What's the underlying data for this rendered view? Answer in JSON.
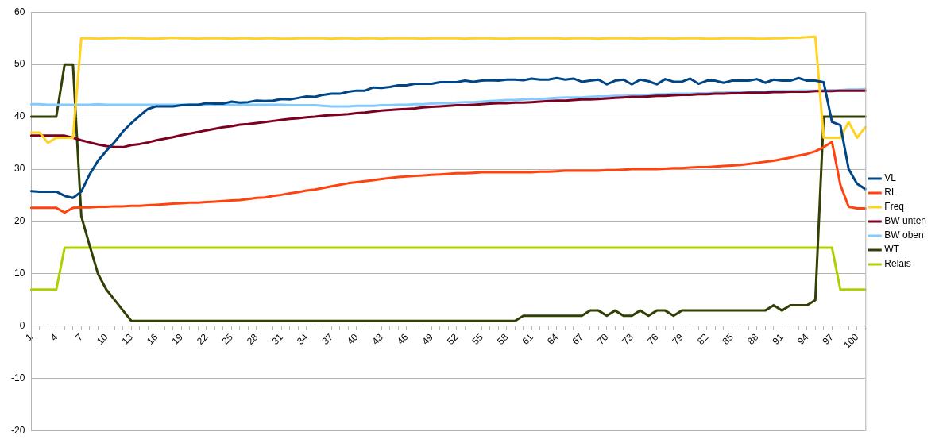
{
  "chart_data": {
    "type": "line",
    "categories": [
      "1",
      null,
      null,
      "4",
      null,
      null,
      "7",
      null,
      null,
      "10",
      null,
      null,
      "13",
      null,
      null,
      "16",
      null,
      null,
      "19",
      null,
      null,
      "22",
      null,
      null,
      "25",
      null,
      null,
      "28",
      null,
      null,
      "31",
      null,
      null,
      "34",
      null,
      null,
      "37",
      null,
      null,
      "40",
      null,
      null,
      "43",
      null,
      null,
      "46",
      null,
      null,
      "49",
      null,
      null,
      "52",
      null,
      null,
      "55",
      null,
      null,
      "58",
      null,
      null,
      "61",
      null,
      null,
      "64",
      null,
      null,
      "67",
      null,
      null,
      "70",
      null,
      null,
      "73",
      null,
      null,
      "76",
      null,
      null,
      "79",
      null,
      null,
      "82",
      null,
      null,
      "85",
      null,
      null,
      "88",
      null,
      null,
      "91",
      null,
      null,
      "94",
      null,
      null,
      "97",
      null,
      null,
      "100",
      null
    ],
    "series": [
      {
        "name": "VL",
        "color": "#004586",
        "values": [
          25.8,
          25.7,
          25.7,
          25.7,
          24.9,
          24.5,
          25.7,
          29.0,
          31.6,
          33.5,
          35.2,
          37.2,
          38.8,
          40.2,
          41.5,
          42.0,
          42.0,
          42.0,
          42.2,
          42.3,
          42.3,
          42.6,
          42.5,
          42.5,
          42.9,
          42.7,
          42.8,
          43.1,
          43.0,
          43.1,
          43.4,
          43.3,
          43.6,
          43.9,
          43.8,
          44.2,
          44.4,
          44.4,
          44.8,
          45.0,
          45.0,
          45.6,
          45.5,
          45.7,
          46.0,
          46.0,
          46.3,
          46.3,
          46.3,
          46.6,
          46.6,
          46.6,
          46.9,
          46.7,
          46.9,
          47.0,
          46.9,
          47.1,
          47.1,
          47.0,
          47.3,
          47.1,
          47.1,
          47.4,
          47.1,
          47.3,
          46.7,
          46.9,
          47.1,
          46.2,
          46.9,
          47.1,
          46.2,
          47.1,
          46.8,
          46.2,
          47.2,
          46.7,
          46.7,
          47.3,
          46.3,
          46.9,
          46.9,
          46.5,
          46.9,
          46.9,
          46.9,
          47.2,
          46.5,
          47.1,
          46.9,
          46.9,
          47.4,
          46.9,
          46.9,
          46.6,
          39.0,
          38.4,
          30.0,
          27.2,
          26.2
        ]
      },
      {
        "name": "RL",
        "color": "#ff420e",
        "values": [
          22.6,
          22.6,
          22.6,
          22.6,
          21.7,
          22.6,
          22.7,
          22.7,
          22.8,
          22.8,
          22.9,
          22.9,
          23.0,
          23.0,
          23.1,
          23.2,
          23.3,
          23.4,
          23.5,
          23.6,
          23.6,
          23.7,
          23.8,
          23.9,
          24.0,
          24.1,
          24.3,
          24.5,
          24.6,
          24.9,
          25.1,
          25.4,
          25.6,
          25.9,
          26.1,
          26.4,
          26.7,
          27.0,
          27.3,
          27.5,
          27.7,
          27.9,
          28.1,
          28.3,
          28.5,
          28.6,
          28.7,
          28.8,
          28.9,
          29.0,
          29.1,
          29.2,
          29.2,
          29.3,
          29.4,
          29.4,
          29.4,
          29.4,
          29.4,
          29.4,
          29.4,
          29.5,
          29.5,
          29.6,
          29.7,
          29.7,
          29.7,
          29.7,
          29.7,
          29.8,
          29.8,
          29.9,
          30.0,
          30.0,
          30.0,
          30.0,
          30.1,
          30.2,
          30.2,
          30.3,
          30.4,
          30.4,
          30.5,
          30.6,
          30.7,
          30.8,
          31.0,
          31.2,
          31.4,
          31.6,
          31.9,
          32.2,
          32.6,
          32.9,
          33.4,
          34.2,
          35.2,
          27.0,
          22.8,
          22.5,
          22.5
        ]
      },
      {
        "name": "Freq",
        "color": "#ffd320",
        "values": [
          37,
          37,
          35,
          36,
          36,
          36,
          55,
          55.0,
          54.9,
          55.0,
          55.0,
          55.1,
          55.0,
          55.0,
          54.9,
          54.9,
          55.0,
          55.1,
          55.0,
          55.0,
          54.9,
          55.0,
          55.0,
          55.0,
          54.9,
          55.0,
          55.0,
          54.9,
          55.0,
          55.0,
          54.9,
          54.9,
          55.0,
          55.0,
          55.0,
          55.0,
          54.9,
          55.0,
          55.0,
          54.9,
          55.0,
          55.0,
          54.9,
          55.0,
          55.0,
          55.0,
          55.0,
          54.9,
          55.0,
          55.0,
          55.0,
          55.0,
          54.9,
          55.0,
          55.0,
          55.0,
          54.9,
          54.9,
          55.0,
          55.0,
          55.0,
          55.0,
          55.0,
          55.0,
          54.9,
          55.0,
          55.0,
          55.0,
          54.9,
          55.0,
          55.0,
          55.0,
          55.0,
          54.9,
          55.0,
          55.0,
          55.0,
          54.9,
          55.0,
          55.0,
          55.0,
          54.9,
          54.9,
          55.0,
          55.0,
          55.0,
          55.0,
          54.9,
          54.9,
          55.0,
          55.0,
          55.1,
          55.1,
          55.2,
          55.3,
          36,
          36,
          36,
          39,
          36,
          38
        ]
      },
      {
        "name": "BW unten",
        "color": "#7e0021",
        "values": [
          36.4,
          36.4,
          36.4,
          36.4,
          36.4,
          36.0,
          35.5,
          35.1,
          34.7,
          34.4,
          34.2,
          34.2,
          34.6,
          34.8,
          35.1,
          35.5,
          35.8,
          36.1,
          36.5,
          36.8,
          37.1,
          37.4,
          37.7,
          38.0,
          38.2,
          38.5,
          38.6,
          38.8,
          39.0,
          39.2,
          39.4,
          39.6,
          39.7,
          39.9,
          40.0,
          40.2,
          40.3,
          40.4,
          40.5,
          40.7,
          40.8,
          41.0,
          41.2,
          41.3,
          41.4,
          41.5,
          41.6,
          41.8,
          41.9,
          42.0,
          42.1,
          42.2,
          42.2,
          42.3,
          42.4,
          42.5,
          42.6,
          42.6,
          42.7,
          42.7,
          42.8,
          42.9,
          43.0,
          43.1,
          43.1,
          43.2,
          43.3,
          43.3,
          43.4,
          43.5,
          43.6,
          43.7,
          43.8,
          43.8,
          43.9,
          44.0,
          44.0,
          44.1,
          44.2,
          44.2,
          44.3,
          44.3,
          44.4,
          44.4,
          44.5,
          44.5,
          44.6,
          44.6,
          44.6,
          44.7,
          44.7,
          44.8,
          44.8,
          44.8,
          44.9,
          44.9,
          44.9,
          45.0,
          45.0,
          45.0,
          45.0
        ]
      },
      {
        "name": "BW oben",
        "color": "#83caff",
        "values": [
          42.4,
          42.4,
          42.3,
          42.3,
          42.3,
          42.3,
          42.3,
          42.3,
          42.4,
          42.3,
          42.3,
          42.3,
          42.3,
          42.3,
          42.3,
          42.3,
          42.3,
          42.3,
          42.3,
          42.3,
          42.3,
          42.3,
          42.3,
          42.3,
          42.3,
          42.3,
          42.3,
          42.3,
          42.3,
          42.3,
          42.3,
          42.2,
          42.2,
          42.2,
          42.2,
          42.1,
          42.0,
          42.0,
          42.0,
          42.1,
          42.1,
          42.1,
          42.2,
          42.2,
          42.3,
          42.3,
          42.4,
          42.4,
          42.5,
          42.6,
          42.6,
          42.7,
          42.8,
          42.8,
          42.9,
          43.0,
          43.1,
          43.2,
          43.2,
          43.3,
          43.4,
          43.4,
          43.5,
          43.6,
          43.7,
          43.7,
          43.7,
          43.8,
          43.9,
          43.9,
          44.0,
          44.0,
          44.1,
          44.2,
          44.2,
          44.3,
          44.3,
          44.4,
          44.4,
          44.4,
          44.5,
          44.5,
          44.6,
          44.6,
          44.7,
          44.7,
          44.7,
          44.8,
          44.8,
          44.9,
          44.9,
          44.9,
          45.0,
          45.0,
          45.0,
          45.1,
          45.1,
          45.1,
          45.2,
          45.2,
          45.3
        ]
      },
      {
        "name": "WT",
        "color": "#314004",
        "values": [
          40,
          40,
          40,
          40,
          50,
          50,
          21,
          15.4,
          10,
          7,
          5,
          3,
          1,
          1,
          1,
          1,
          1,
          1,
          1,
          1,
          1,
          1,
          1,
          1,
          1,
          1,
          1,
          1,
          1,
          1,
          1,
          1,
          1,
          1,
          1,
          1,
          1,
          1,
          1,
          1,
          1,
          1,
          1,
          1,
          1,
          1,
          1,
          1,
          1,
          1,
          1,
          1,
          1,
          1,
          1,
          1,
          1,
          1,
          1,
          2,
          2,
          2,
          2,
          2,
          2,
          2,
          2,
          3,
          3,
          2,
          3,
          2,
          2,
          3,
          2,
          3,
          3,
          2,
          3,
          3,
          3,
          3,
          3,
          3,
          3,
          3,
          3,
          3,
          3,
          4,
          3,
          4,
          4,
          4,
          5,
          40,
          40,
          40,
          40,
          40,
          40
        ]
      },
      {
        "name": "Relais",
        "color": "#aecf00",
        "values": [
          7,
          7,
          7,
          7,
          15,
          15,
          15,
          15,
          15,
          15,
          15,
          15,
          15,
          15,
          15,
          15,
          15,
          15,
          15,
          15,
          15,
          15,
          15,
          15,
          15,
          15,
          15,
          15,
          15,
          15,
          15,
          15,
          15,
          15,
          15,
          15,
          15,
          15,
          15,
          15,
          15,
          15,
          15,
          15,
          15,
          15,
          15,
          15,
          15,
          15,
          15,
          15,
          15,
          15,
          15,
          15,
          15,
          15,
          15,
          15,
          15,
          15,
          15,
          15,
          15,
          15,
          15,
          15,
          15,
          15,
          15,
          15,
          15,
          15,
          15,
          15,
          15,
          15,
          15,
          15,
          15,
          15,
          15,
          15,
          15,
          15,
          15,
          15,
          15,
          15,
          15,
          15,
          15,
          15,
          15,
          15,
          15,
          7,
          7,
          7,
          7
        ]
      }
    ],
    "ylim": [
      -20,
      60
    ],
    "yticks": [
      -20,
      -10,
      0,
      10,
      20,
      30,
      40,
      50,
      60
    ],
    "grid": "y",
    "legend": "right",
    "marker": "none",
    "line_style": "solid"
  }
}
